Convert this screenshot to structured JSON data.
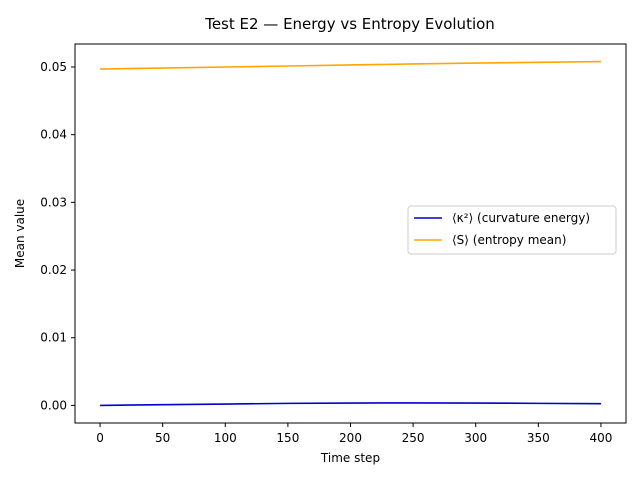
{
  "chart_data": {
    "type": "line",
    "title": "Test E2 — Energy vs Entropy Evolution",
    "xlabel": "Time step",
    "ylabel": "Mean value",
    "xlim": [
      -20,
      420
    ],
    "ylim": [
      -0.0026,
      0.0534
    ],
    "xticks": [
      0,
      50,
      100,
      150,
      200,
      250,
      300,
      350,
      400
    ],
    "yticks": [
      0.0,
      0.01,
      0.02,
      0.03,
      0.04,
      0.05
    ],
    "ytick_labels": [
      "0.00",
      "0.01",
      "0.02",
      "0.03",
      "0.04",
      "0.05"
    ],
    "grid": false,
    "legend_position": "center-right",
    "x": [
      0,
      50,
      100,
      150,
      200,
      250,
      300,
      350,
      400
    ],
    "series": [
      {
        "name": "⟨κ²⟩ (curvature energy)",
        "color": "#0000cc",
        "values": [
          0.0,
          0.0001,
          0.0002,
          0.0003,
          0.00035,
          0.00037,
          0.00035,
          0.0003,
          0.00025
        ]
      },
      {
        "name": "⟨S⟩ (entropy mean)",
        "color": "#ffa500",
        "values": [
          0.0497,
          0.04985,
          0.05,
          0.05015,
          0.0503,
          0.05045,
          0.05058,
          0.0507,
          0.0508
        ]
      }
    ]
  }
}
